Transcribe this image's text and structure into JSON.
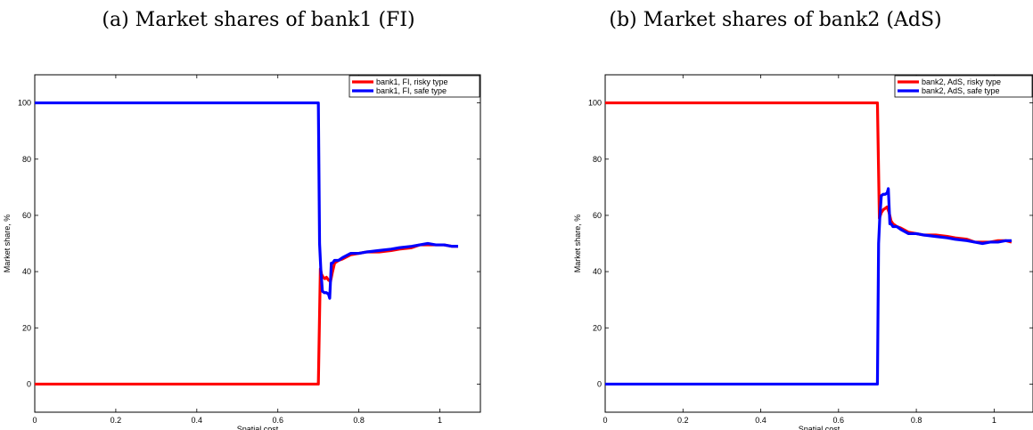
{
  "chart_data": [
    {
      "type": "line",
      "title": "(a) Market shares of bank1 (FI)",
      "xlabel": "Spatial cost",
      "ylabel": "Market share, %",
      "xlim": [
        0,
        1.1
      ],
      "ylim": [
        -10,
        110
      ],
      "xticks": [
        0,
        0.2,
        0.4,
        0.6,
        0.8,
        1
      ],
      "xtick_labels": [
        "0",
        "0.2",
        "0.4",
        "0.6",
        "0.8",
        "1"
      ],
      "yticks": [
        0,
        20,
        40,
        60,
        80,
        100
      ],
      "ytick_labels": [
        "0",
        "20",
        "40",
        "60",
        "80",
        "100"
      ],
      "grid": false,
      "legend_position": "top-right",
      "series": [
        {
          "name": "bank1, FI, risky type",
          "color": "#ff0000",
          "x": [
            0,
            0.7,
            0.705,
            0.708,
            0.712,
            0.716,
            0.72,
            0.725,
            0.73,
            0.735,
            0.74,
            0.75,
            0.76,
            0.78,
            0.8,
            0.82,
            0.85,
            0.88,
            0.9,
            0.93,
            0.95,
            0.97,
            0.99,
            1.01,
            1.03,
            1.045
          ],
          "y": [
            0,
            0,
            41,
            39,
            38,
            37.5,
            38,
            37,
            36.5,
            40,
            43,
            44,
            44.5,
            46,
            46.5,
            47,
            47,
            47.5,
            48,
            48.5,
            49.5,
            49.5,
            49.5,
            49.5,
            49,
            49
          ]
        },
        {
          "name": "bank1, FI, safe type",
          "color": "#0000ff",
          "x": [
            0,
            0.7,
            0.703,
            0.706,
            0.71,
            0.715,
            0.72,
            0.725,
            0.728,
            0.732,
            0.735,
            0.74,
            0.75,
            0.76,
            0.78,
            0.8,
            0.82,
            0.85,
            0.88,
            0.9,
            0.93,
            0.95,
            0.97,
            0.99,
            1.01,
            1.03,
            1.045
          ],
          "y": [
            100,
            100,
            50,
            41,
            33,
            32.5,
            32.5,
            32,
            30.5,
            43,
            43,
            44,
            44,
            45,
            46.5,
            46.5,
            47,
            47.5,
            48,
            48.5,
            49,
            49.5,
            50,
            49.5,
            49.5,
            49,
            49
          ]
        }
      ]
    },
    {
      "type": "line",
      "title": "(b) Market shares of bank2 (AdS)",
      "xlabel": "Spatial cost",
      "ylabel": "Market share, %",
      "xlim": [
        0,
        1.1
      ],
      "ylim": [
        -10,
        110
      ],
      "xticks": [
        0,
        0.2,
        0.4,
        0.6,
        0.8,
        1
      ],
      "xtick_labels": [
        "0",
        "0.2",
        "0.4",
        "0.6",
        "0.8",
        "1"
      ],
      "yticks": [
        0,
        20,
        40,
        60,
        80,
        100
      ],
      "ytick_labels": [
        "0",
        "20",
        "40",
        "60",
        "80",
        "100"
      ],
      "grid": false,
      "legend_position": "top-right",
      "series": [
        {
          "name": "bank2, AdS, risky type",
          "color": "#ff0000",
          "x": [
            0,
            0.7,
            0.705,
            0.71,
            0.715,
            0.72,
            0.725,
            0.73,
            0.735,
            0.74,
            0.75,
            0.76,
            0.78,
            0.8,
            0.82,
            0.85,
            0.88,
            0.9,
            0.93,
            0.95,
            0.97,
            0.99,
            1.01,
            1.03,
            1.045
          ],
          "y": [
            100,
            100,
            59,
            61,
            62,
            62.5,
            63,
            61,
            58,
            57,
            56,
            55.5,
            54,
            53.5,
            53,
            53,
            52.5,
            52,
            51.5,
            50.5,
            50.5,
            50.5,
            51,
            51,
            50.5
          ]
        },
        {
          "name": "bank2, AdS, safe type",
          "color": "#0000ff",
          "x": [
            0,
            0.7,
            0.703,
            0.706,
            0.71,
            0.715,
            0.72,
            0.725,
            0.728,
            0.732,
            0.735,
            0.74,
            0.75,
            0.76,
            0.78,
            0.8,
            0.82,
            0.85,
            0.88,
            0.9,
            0.93,
            0.95,
            0.97,
            0.99,
            1.01,
            1.03,
            1.045
          ],
          "y": [
            0,
            0,
            50,
            59,
            67,
            67.5,
            67.5,
            68,
            69.5,
            57,
            57,
            56,
            56,
            55,
            53.5,
            53.5,
            53,
            52.5,
            52,
            51.5,
            51,
            50.5,
            50,
            50.5,
            50.5,
            51,
            51
          ]
        }
      ]
    }
  ]
}
